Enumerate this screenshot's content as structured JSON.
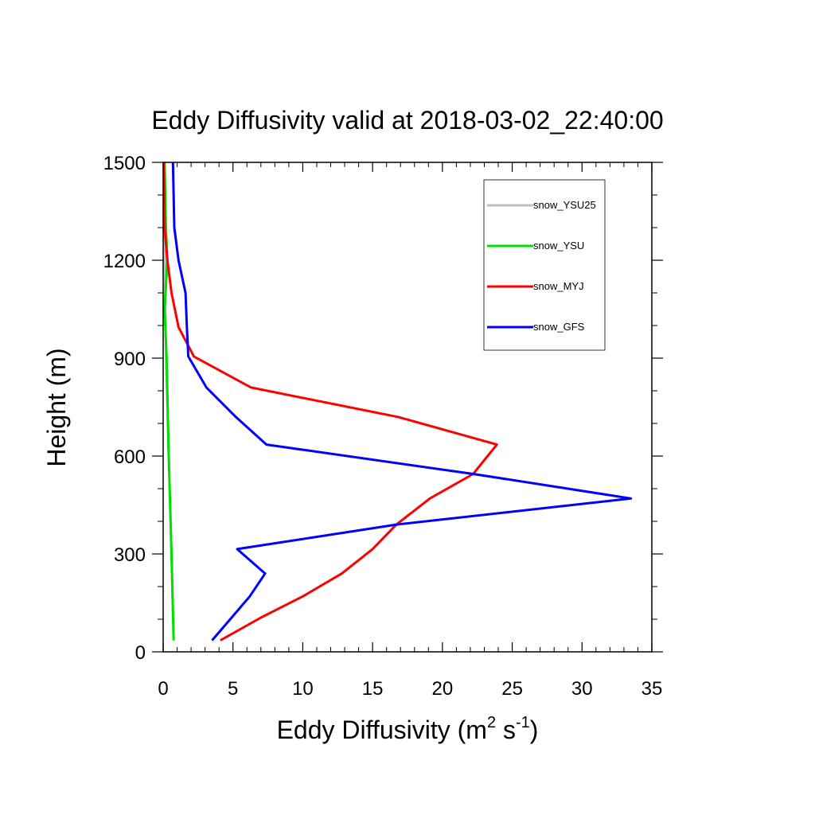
{
  "chart_data": {
    "type": "line",
    "title": "Eddy Diffusivity valid at 2018-03-02_22:40:00",
    "xlabel": "Eddy Diffusivity (m",
    "xlabel_sup1": "2",
    "xlabel_mid": " s",
    "xlabel_sup2": "-1",
    "xlabel_end": ")",
    "ylabel": "Height (m)",
    "xlim": [
      0,
      35
    ],
    "ylim": [
      0,
      1500
    ],
    "xticks": [
      "0",
      "5",
      "10",
      "15",
      "20",
      "25",
      "30",
      "35"
    ],
    "yticks": [
      "0",
      "300",
      "600",
      "900",
      "1200",
      "1500"
    ],
    "xtick_values": [
      0,
      5,
      10,
      15,
      20,
      25,
      30,
      35
    ],
    "ytick_values": [
      0,
      300,
      600,
      900,
      1200,
      1500
    ],
    "grid": false,
    "legend_position": "top-right",
    "series": [
      {
        "name": "snow_YSU25",
        "color": "#bebebe",
        "points": [
          [
            0.75,
            35
          ],
          [
            0.6,
            300
          ],
          [
            0.4,
            600
          ],
          [
            0.2,
            900
          ],
          [
            0.1,
            1200
          ],
          [
            0.05,
            1500
          ]
        ]
      },
      {
        "name": "snow_YSU",
        "color": "#00e000",
        "points": [
          [
            0.75,
            35
          ],
          [
            0.6,
            300
          ],
          [
            0.4,
            600
          ],
          [
            0.25,
            900
          ],
          [
            0.1,
            1050
          ],
          [
            0.3,
            1200
          ],
          [
            0.2,
            1300
          ],
          [
            0.1,
            1500
          ]
        ]
      },
      {
        "name": "snow_MYJ",
        "color": "#ff0000",
        "points": [
          [
            4.1,
            35
          ],
          [
            7.0,
            105
          ],
          [
            10.0,
            170
          ],
          [
            12.8,
            240
          ],
          [
            15.0,
            315
          ],
          [
            16.7,
            390
          ],
          [
            19.1,
            470
          ],
          [
            22.2,
            545
          ],
          [
            23.9,
            635
          ],
          [
            16.8,
            720
          ],
          [
            6.3,
            810
          ],
          [
            2.2,
            905
          ],
          [
            1.1,
            995
          ],
          [
            0.6,
            1100
          ],
          [
            0.3,
            1200
          ],
          [
            0.1,
            1300
          ],
          [
            0.05,
            1500
          ]
        ]
      },
      {
        "name": "snow_GFS",
        "color": "#0000ff",
        "points": [
          [
            3.5,
            35
          ],
          [
            4.9,
            105
          ],
          [
            6.2,
            170
          ],
          [
            7.3,
            240
          ],
          [
            5.3,
            315
          ],
          [
            16.7,
            390
          ],
          [
            33.5,
            470
          ],
          [
            22.2,
            545
          ],
          [
            7.4,
            635
          ],
          [
            5.2,
            720
          ],
          [
            3.1,
            810
          ],
          [
            1.8,
            905
          ],
          [
            1.7,
            995
          ],
          [
            1.6,
            1100
          ],
          [
            1.1,
            1200
          ],
          [
            0.8,
            1300
          ],
          [
            0.7,
            1500
          ]
        ]
      }
    ]
  }
}
